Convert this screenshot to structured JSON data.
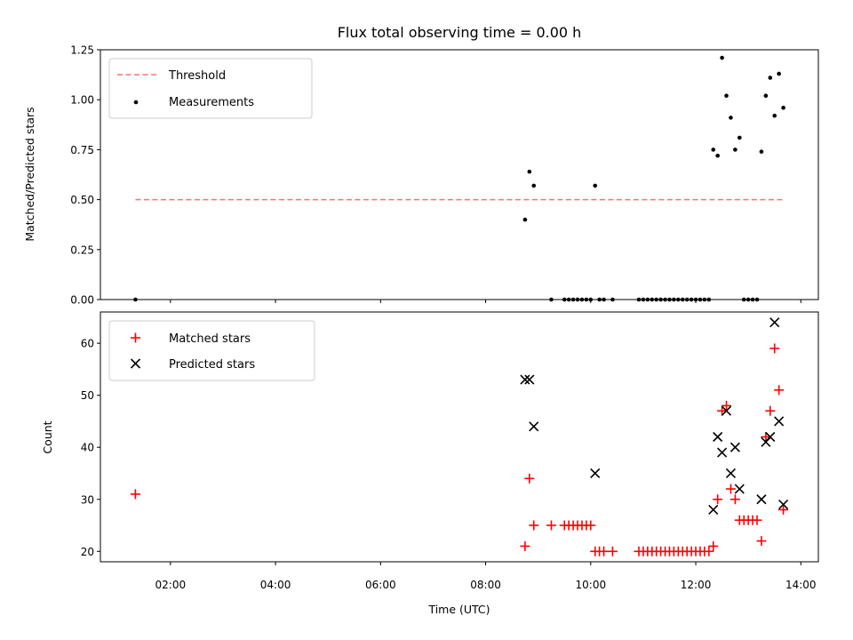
{
  "chart_data": [
    {
      "type": "scatter",
      "title": "Flux total observing time = 0.00 h",
      "ylabel": "Matched/Predicted stars",
      "xlim": [
        "00:40",
        "14:20"
      ],
      "ylim": [
        0,
        1.25
      ],
      "yticks": [
        "0.00",
        "0.25",
        "0.50",
        "0.75",
        "1.00",
        "1.25"
      ],
      "legend_position": "top-left",
      "grid": false,
      "threshold": {
        "name": "Threshold",
        "value": 0.5,
        "x_start": "01:20",
        "x_end": "13:40",
        "color": "#ff7070",
        "style": "dashed"
      },
      "series": [
        {
          "name": "Measurements",
          "marker": "dot",
          "color": "#000000",
          "points": [
            [
              "01:20",
              0.0
            ],
            [
              "08:45",
              0.4
            ],
            [
              "08:50",
              0.64
            ],
            [
              "08:55",
              0.57
            ],
            [
              "09:15",
              0.0
            ],
            [
              "09:30",
              0.0
            ],
            [
              "09:35",
              0.0
            ],
            [
              "09:40",
              0.0
            ],
            [
              "09:45",
              0.0
            ],
            [
              "09:50",
              0.0
            ],
            [
              "09:55",
              0.0
            ],
            [
              "10:00",
              0.0
            ],
            [
              "10:05",
              0.57
            ],
            [
              "10:10",
              0.0
            ],
            [
              "10:15",
              0.0
            ],
            [
              "10:25",
              0.0
            ],
            [
              "10:55",
              0.0
            ],
            [
              "11:00",
              0.0
            ],
            [
              "11:05",
              0.0
            ],
            [
              "11:10",
              0.0
            ],
            [
              "11:15",
              0.0
            ],
            [
              "11:20",
              0.0
            ],
            [
              "11:25",
              0.0
            ],
            [
              "11:30",
              0.0
            ],
            [
              "11:35",
              0.0
            ],
            [
              "11:40",
              0.0
            ],
            [
              "11:45",
              0.0
            ],
            [
              "11:50",
              0.0
            ],
            [
              "11:55",
              0.0
            ],
            [
              "12:00",
              0.0
            ],
            [
              "12:05",
              0.0
            ],
            [
              "12:10",
              0.0
            ],
            [
              "12:15",
              0.0
            ],
            [
              "12:20",
              0.75
            ],
            [
              "12:25",
              0.72
            ],
            [
              "12:30",
              1.21
            ],
            [
              "12:35",
              1.02
            ],
            [
              "12:40",
              0.91
            ],
            [
              "12:45",
              0.75
            ],
            [
              "12:50",
              0.81
            ],
            [
              "12:55",
              0.0
            ],
            [
              "13:00",
              0.0
            ],
            [
              "13:05",
              0.0
            ],
            [
              "13:10",
              0.0
            ],
            [
              "13:15",
              0.74
            ],
            [
              "13:20",
              1.02
            ],
            [
              "13:25",
              1.11
            ],
            [
              "13:30",
              0.92
            ],
            [
              "13:35",
              1.13
            ],
            [
              "13:40",
              0.96
            ]
          ]
        }
      ]
    },
    {
      "type": "scatter",
      "xlabel": "Time (UTC)",
      "ylabel": "Count",
      "xlim": [
        "00:40",
        "14:20"
      ],
      "ylim": [
        18,
        66
      ],
      "xticks": [
        "02:00",
        "04:00",
        "06:00",
        "08:00",
        "10:00",
        "12:00",
        "14:00"
      ],
      "yticks": [
        "20",
        "30",
        "40",
        "50",
        "60"
      ],
      "legend_position": "top-left",
      "grid": false,
      "series": [
        {
          "name": "Matched stars",
          "marker": "plus",
          "color": "#ff0000",
          "points": [
            [
              "01:20",
              31
            ],
            [
              "08:45",
              21
            ],
            [
              "08:50",
              34
            ],
            [
              "08:55",
              25
            ],
            [
              "09:15",
              25
            ],
            [
              "09:30",
              25
            ],
            [
              "09:35",
              25
            ],
            [
              "09:40",
              25
            ],
            [
              "09:45",
              25
            ],
            [
              "09:50",
              25
            ],
            [
              "09:55",
              25
            ],
            [
              "10:00",
              25
            ],
            [
              "10:05",
              20
            ],
            [
              "10:10",
              20
            ],
            [
              "10:15",
              20
            ],
            [
              "10:25",
              20
            ],
            [
              "10:55",
              20
            ],
            [
              "11:00",
              20
            ],
            [
              "11:05",
              20
            ],
            [
              "11:10",
              20
            ],
            [
              "11:15",
              20
            ],
            [
              "11:20",
              20
            ],
            [
              "11:25",
              20
            ],
            [
              "11:30",
              20
            ],
            [
              "11:35",
              20
            ],
            [
              "11:40",
              20
            ],
            [
              "11:45",
              20
            ],
            [
              "11:50",
              20
            ],
            [
              "11:55",
              20
            ],
            [
              "12:00",
              20
            ],
            [
              "12:05",
              20
            ],
            [
              "12:10",
              20
            ],
            [
              "12:15",
              20
            ],
            [
              "12:20",
              21
            ],
            [
              "12:25",
              30
            ],
            [
              "12:30",
              47
            ],
            [
              "12:35",
              48
            ],
            [
              "12:40",
              32
            ],
            [
              "12:45",
              30
            ],
            [
              "12:50",
              26
            ],
            [
              "12:55",
              26
            ],
            [
              "13:00",
              26
            ],
            [
              "13:05",
              26
            ],
            [
              "13:10",
              26
            ],
            [
              "13:15",
              22
            ],
            [
              "13:20",
              42
            ],
            [
              "13:25",
              47
            ],
            [
              "13:30",
              59
            ],
            [
              "13:35",
              51
            ],
            [
              "13:40",
              28
            ]
          ]
        },
        {
          "name": "Predicted stars",
          "marker": "cross",
          "color": "#000000",
          "points": [
            [
              "08:45",
              53
            ],
            [
              "08:50",
              53
            ],
            [
              "08:55",
              44
            ],
            [
              "10:05",
              35
            ],
            [
              "12:20",
              28
            ],
            [
              "12:25",
              42
            ],
            [
              "12:30",
              39
            ],
            [
              "12:35",
              47
            ],
            [
              "12:40",
              35
            ],
            [
              "12:45",
              40
            ],
            [
              "12:50",
              32
            ],
            [
              "13:15",
              30
            ],
            [
              "13:20",
              41
            ],
            [
              "13:25",
              42
            ],
            [
              "13:30",
              64
            ],
            [
              "13:35",
              45
            ],
            [
              "13:40",
              29
            ]
          ]
        }
      ]
    }
  ]
}
